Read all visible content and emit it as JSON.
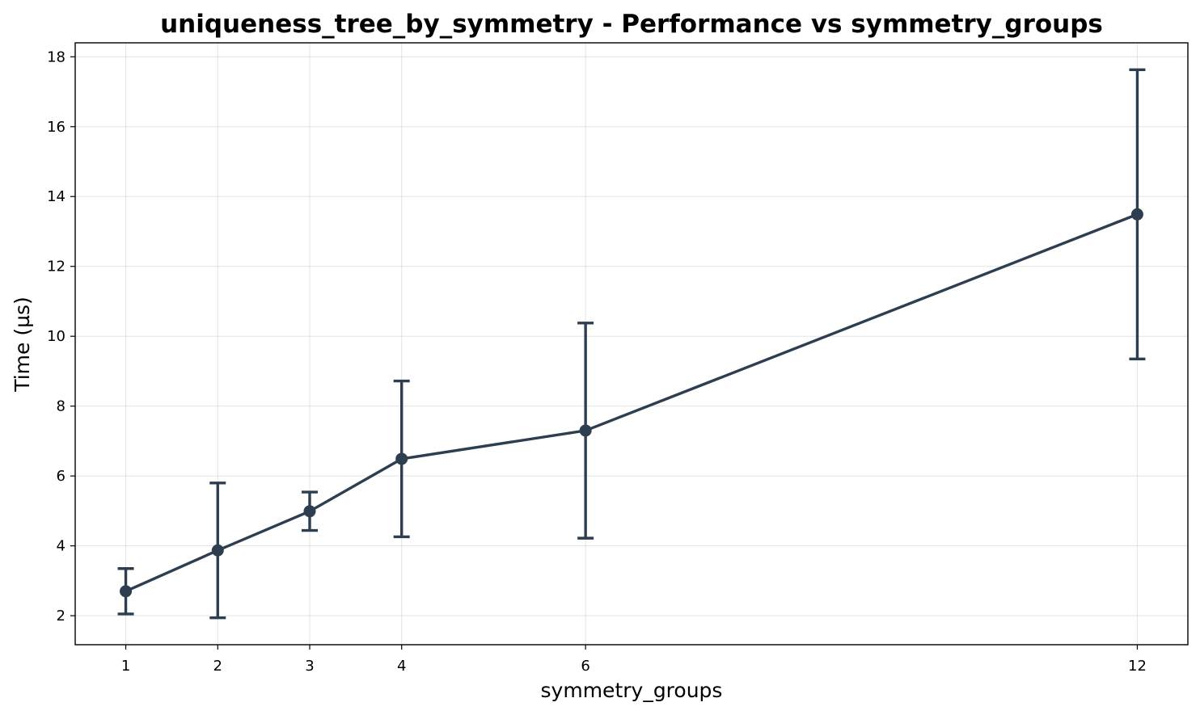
{
  "chart_data": {
    "type": "line",
    "title": "uniqueness_tree_by_symmetry - Performance vs symmetry_groups",
    "xlabel": "symmetry_groups",
    "ylabel": "Time (µs)",
    "x": [
      1,
      2,
      3,
      4,
      6,
      12
    ],
    "x_tick_labels": [
      "1",
      "2",
      "3",
      "4",
      "6",
      "12"
    ],
    "y_ticks": [
      2,
      4,
      6,
      8,
      10,
      12,
      14,
      16,
      18
    ],
    "y_tick_labels": [
      "2",
      "4",
      "6",
      "8",
      "10",
      "12",
      "14",
      "16",
      "18"
    ],
    "xlim": [
      0.45,
      12.55
    ],
    "ylim": [
      1.17,
      18.4
    ],
    "grid": true,
    "color": "#2d3e50",
    "series": [
      {
        "values": [
          2.7,
          3.87,
          4.99,
          6.49,
          7.3,
          13.49
        ],
        "error": [
          0.65,
          1.93,
          0.55,
          2.23,
          3.08,
          4.14
        ]
      }
    ]
  }
}
